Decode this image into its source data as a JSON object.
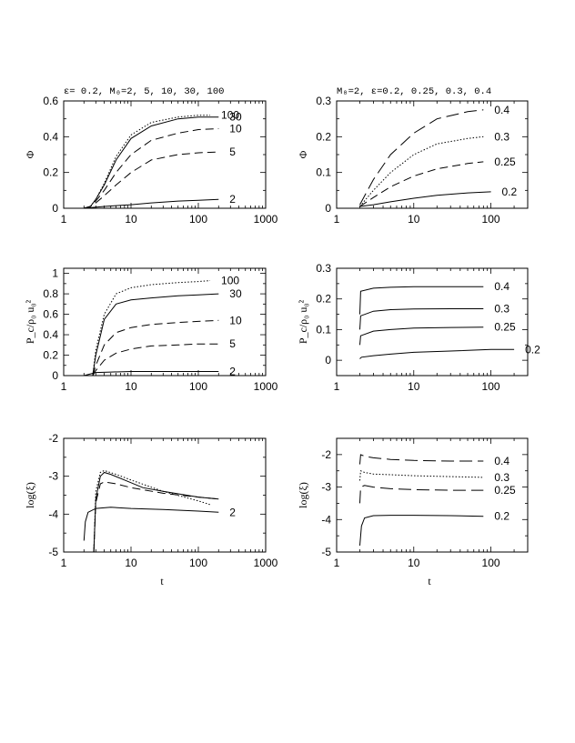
{
  "chart_data": [
    {
      "id": "phi_M",
      "type": "line",
      "title": "ε= 0.2, M₀=2, 5, 10, 30, 100",
      "xlabel": "",
      "ylabel": "Φ",
      "xscale": "log",
      "xlim": [
        1,
        1000
      ],
      "ylim": [
        0,
        0.6
      ],
      "xticks": [
        1,
        10,
        100,
        1000
      ],
      "yticks": [
        0,
        0.2,
        0.4,
        0.6
      ],
      "series": [
        {
          "name": "2",
          "style": "solid",
          "x": [
            2,
            2.8,
            4,
            6,
            10,
            20,
            50,
            100,
            200
          ],
          "y": [
            0,
            0.005,
            0.01,
            0.015,
            0.02,
            0.03,
            0.04,
            0.045,
            0.05
          ]
        },
        {
          "name": "5",
          "style": "dashed",
          "x": [
            2,
            2.5,
            3,
            4,
            6,
            10,
            20,
            50,
            100,
            200
          ],
          "y": [
            0,
            0.01,
            0.03,
            0.07,
            0.13,
            0.2,
            0.27,
            0.3,
            0.31,
            0.315
          ]
        },
        {
          "name": "10",
          "style": "dashed",
          "x": [
            2,
            2.5,
            3,
            4,
            6,
            10,
            20,
            50,
            100,
            200
          ],
          "y": [
            0,
            0.01,
            0.04,
            0.1,
            0.2,
            0.3,
            0.38,
            0.42,
            0.44,
            0.445
          ]
        },
        {
          "name": "30",
          "style": "solid",
          "x": [
            2,
            2.5,
            3,
            4,
            6,
            10,
            20,
            50,
            100,
            200
          ],
          "y": [
            0,
            0.01,
            0.05,
            0.13,
            0.27,
            0.39,
            0.46,
            0.5,
            0.51,
            0.51
          ]
        },
        {
          "name": "100",
          "style": "dotted",
          "x": [
            2,
            2.5,
            3,
            4,
            6,
            10,
            20,
            50,
            100,
            150
          ],
          "y": [
            0,
            0.01,
            0.05,
            0.14,
            0.29,
            0.41,
            0.48,
            0.51,
            0.52,
            0.52
          ]
        }
      ]
    },
    {
      "id": "phi_eps",
      "type": "line",
      "title": "M₀=2, ε=0.2, 0.25, 0.3, 0.4",
      "xlabel": "",
      "ylabel": "Φ",
      "xscale": "log",
      "xlim": [
        1,
        300
      ],
      "ylim": [
        0,
        0.3
      ],
      "xticks": [
        1,
        10,
        100
      ],
      "yticks": [
        0,
        0.1,
        0.2,
        0.3
      ],
      "series": [
        {
          "name": "0.2",
          "style": "solid",
          "x": [
            2,
            3,
            5,
            10,
            20,
            50,
            100
          ],
          "y": [
            0.005,
            0.01,
            0.018,
            0.028,
            0.036,
            0.043,
            0.046
          ]
        },
        {
          "name": "0.25",
          "style": "dashed",
          "x": [
            2,
            3,
            5,
            10,
            20,
            50,
            80
          ],
          "y": [
            0.005,
            0.03,
            0.06,
            0.09,
            0.11,
            0.125,
            0.13
          ]
        },
        {
          "name": "0.3",
          "style": "dotted",
          "x": [
            2,
            3,
            5,
            10,
            20,
            50,
            80
          ],
          "y": [
            0.005,
            0.05,
            0.1,
            0.15,
            0.18,
            0.195,
            0.2
          ]
        },
        {
          "name": "0.4",
          "style": "longdash",
          "x": [
            2,
            3,
            5,
            10,
            20,
            50,
            80
          ],
          "y": [
            0.01,
            0.08,
            0.15,
            0.21,
            0.25,
            0.27,
            0.275
          ]
        }
      ]
    },
    {
      "id": "pressure_M",
      "type": "line",
      "title": "",
      "xlabel": "",
      "ylabel": "P_c/ρ₀ u₀²",
      "xscale": "log",
      "xlim": [
        1,
        1000
      ],
      "ylim": [
        0,
        1.05
      ],
      "xticks": [
        1,
        10,
        100,
        1000
      ],
      "yticks": [
        0,
        0.2,
        0.4,
        0.6,
        0.8,
        1
      ],
      "series": [
        {
          "name": "2",
          "style": "solid",
          "x": [
            2,
            3,
            5,
            10,
            30,
            100,
            200
          ],
          "y": [
            0,
            0.03,
            0.035,
            0.04,
            0.04,
            0.04,
            0.04
          ]
        },
        {
          "name": "5",
          "style": "dashed",
          "x": [
            2.7,
            3,
            4,
            6,
            10,
            20,
            50,
            100,
            200
          ],
          "y": [
            0,
            0.05,
            0.15,
            0.22,
            0.26,
            0.29,
            0.3,
            0.31,
            0.31
          ]
        },
        {
          "name": "10",
          "style": "dashed",
          "x": [
            2.7,
            3,
            4,
            6,
            10,
            20,
            50,
            100,
            200
          ],
          "y": [
            0,
            0.1,
            0.3,
            0.42,
            0.47,
            0.5,
            0.52,
            0.53,
            0.54
          ]
        },
        {
          "name": "30",
          "style": "solid",
          "x": [
            2.7,
            3,
            4,
            6,
            10,
            20,
            50,
            100,
            200
          ],
          "y": [
            0,
            0.2,
            0.55,
            0.7,
            0.74,
            0.76,
            0.78,
            0.79,
            0.8
          ]
        },
        {
          "name": "100",
          "style": "dotted",
          "x": [
            2.7,
            3,
            4,
            6,
            10,
            20,
            50,
            100,
            150
          ],
          "y": [
            0,
            0.25,
            0.6,
            0.8,
            0.86,
            0.89,
            0.91,
            0.92,
            0.93
          ]
        }
      ]
    },
    {
      "id": "pressure_eps",
      "type": "line",
      "title": "",
      "xlabel": "",
      "ylabel": "P_c/ρ₀ u₀²",
      "xscale": "log",
      "xlim": [
        1,
        300
      ],
      "ylim": [
        -0.05,
        0.3
      ],
      "xticks": [
        1,
        10,
        100
      ],
      "yticks": [
        0,
        0.1,
        0.2,
        0.3
      ],
      "series": [
        {
          "name": "0.2",
          "style": "solid",
          "x": [
            2,
            2.1,
            3,
            5,
            10,
            30,
            100,
            200
          ],
          "y": [
            0.005,
            0.01,
            0.015,
            0.02,
            0.026,
            0.03,
            0.035,
            0.035
          ]
        },
        {
          "name": "0.25",
          "style": "solid",
          "x": [
            2,
            2.05,
            3,
            5,
            10,
            30,
            80
          ],
          "y": [
            0.05,
            0.08,
            0.095,
            0.1,
            0.105,
            0.107,
            0.108
          ]
        },
        {
          "name": "0.3",
          "style": "solid",
          "x": [
            2,
            2.05,
            3,
            5,
            10,
            30,
            80
          ],
          "y": [
            0.1,
            0.145,
            0.16,
            0.165,
            0.167,
            0.168,
            0.168
          ]
        },
        {
          "name": "0.4",
          "style": "solid",
          "x": [
            2,
            2.05,
            3,
            5,
            10,
            30,
            80
          ],
          "y": [
            0.15,
            0.225,
            0.235,
            0.238,
            0.24,
            0.24,
            0.24
          ]
        }
      ]
    },
    {
      "id": "logxi_M",
      "type": "line",
      "title": "",
      "xlabel": "t",
      "ylabel": "log(ξ)",
      "xscale": "log",
      "xlim": [
        1,
        1000
      ],
      "ylim": [
        -5,
        -2
      ],
      "xticks": [
        1,
        10,
        100,
        1000
      ],
      "yticks": [
        -5,
        -4,
        -3,
        -2
      ],
      "series": [
        {
          "name": "2",
          "style": "solid",
          "x": [
            2,
            2.1,
            2.3,
            3,
            5,
            10,
            30,
            100,
            200
          ],
          "y": [
            -4.7,
            -4.2,
            -3.95,
            -3.85,
            -3.82,
            -3.85,
            -3.88,
            -3.92,
            -3.95
          ]
        },
        {
          "name": "",
          "style": "solid",
          "x": [
            2.8,
            3,
            3.5,
            4,
            5,
            8,
            15,
            30,
            100,
            200
          ],
          "y": [
            -5,
            -3.6,
            -3.0,
            -2.9,
            -2.95,
            -3.1,
            -3.3,
            -3.4,
            -3.55,
            -3.6
          ]
        },
        {
          "name": "",
          "style": "dashed",
          "x": [
            2.8,
            3,
            3.5,
            4,
            6,
            10,
            30,
            100,
            200
          ],
          "y": [
            -5,
            -3.7,
            -3.2,
            -3.15,
            -3.2,
            -3.3,
            -3.45,
            -3.55,
            -3.6
          ]
        },
        {
          "name": "",
          "style": "dotted",
          "x": [
            2.8,
            3,
            3.5,
            4,
            6,
            10,
            30,
            100,
            150
          ],
          "y": [
            -5,
            -3.4,
            -2.9,
            -2.85,
            -2.95,
            -3.1,
            -3.4,
            -3.65,
            -3.75
          ]
        }
      ]
    },
    {
      "id": "logxi_eps",
      "type": "line",
      "title": "",
      "xlabel": "t",
      "ylabel": "log(ξ)",
      "xscale": "log",
      "xlim": [
        1,
        300
      ],
      "ylim": [
        -5,
        -1.5
      ],
      "xticks": [
        1,
        10,
        100
      ],
      "yticks": [
        -5,
        -4,
        -3,
        -2
      ],
      "series": [
        {
          "name": "0.2",
          "style": "solid",
          "x": [
            2,
            2.1,
            2.3,
            3,
            5,
            10,
            30,
            80
          ],
          "y": [
            -4.8,
            -4.2,
            -3.95,
            -3.88,
            -3.87,
            -3.87,
            -3.88,
            -3.9
          ]
        },
        {
          "name": "0.25",
          "style": "longdash",
          "x": [
            2,
            2.05,
            2.3,
            3,
            5,
            10,
            30,
            80
          ],
          "y": [
            -3.5,
            -3.0,
            -2.95,
            -3.0,
            -3.05,
            -3.08,
            -3.1,
            -3.1
          ]
        },
        {
          "name": "0.3",
          "style": "dotted",
          "x": [
            2,
            2.05,
            2.3,
            3,
            5,
            10,
            30,
            80
          ],
          "y": [
            -2.8,
            -2.5,
            -2.55,
            -2.6,
            -2.62,
            -2.65,
            -2.68,
            -2.7
          ]
        },
        {
          "name": "0.4",
          "style": "longdash",
          "x": [
            2,
            2.05,
            2.3,
            3,
            5,
            10,
            30,
            80
          ],
          "y": [
            -2.3,
            -2.0,
            -2.05,
            -2.1,
            -2.15,
            -2.18,
            -2.2,
            -2.2
          ]
        }
      ]
    }
  ]
}
